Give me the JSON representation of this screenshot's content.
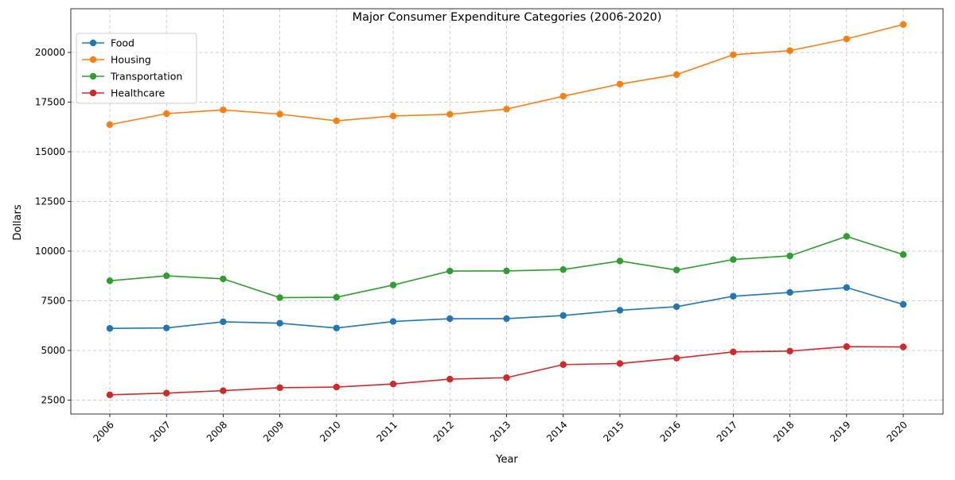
{
  "chart_data": {
    "type": "line",
    "title": "Major Consumer Expenditure Categories (2006-2020)",
    "xlabel": "Year",
    "ylabel": "Dollars",
    "categories": [
      "2006",
      "2007",
      "2008",
      "2009",
      "2010",
      "2011",
      "2012",
      "2013",
      "2014",
      "2015",
      "2016",
      "2017",
      "2018",
      "2019",
      "2020"
    ],
    "y_ticks": [
      2500,
      5000,
      7500,
      10000,
      12500,
      15000,
      17500,
      20000
    ],
    "ylim": [
      1800,
      22200
    ],
    "grid": true,
    "legend_position": "top-left",
    "series": [
      {
        "name": "Food",
        "color": "#1f77b4",
        "values": [
          6111,
          6133,
          6443,
          6372,
          6129,
          6458,
          6599,
          6602,
          6759,
          7023,
          7203,
          7729,
          7923,
          8169,
          7316
        ]
      },
      {
        "name": "Housing",
        "color": "#ff7f0e",
        "values": [
          16366,
          16920,
          17109,
          16895,
          16557,
          16803,
          16887,
          17148,
          17798,
          18409,
          18886,
          19884,
          20091,
          20679,
          21409
        ]
      },
      {
        "name": "Transportation",
        "color": "#2ca02c",
        "values": [
          8508,
          8758,
          8604,
          7658,
          7677,
          8293,
          8998,
          9004,
          9073,
          9503,
          9049,
          9576,
          9761,
          10742,
          9826
        ]
      },
      {
        "name": "Healthcare",
        "color": "#d62728",
        "values": [
          2766,
          2853,
          2976,
          3126,
          3157,
          3313,
          3556,
          3631,
          4290,
          4342,
          4612,
          4928,
          4968,
          5193,
          5177
        ]
      }
    ]
  }
}
